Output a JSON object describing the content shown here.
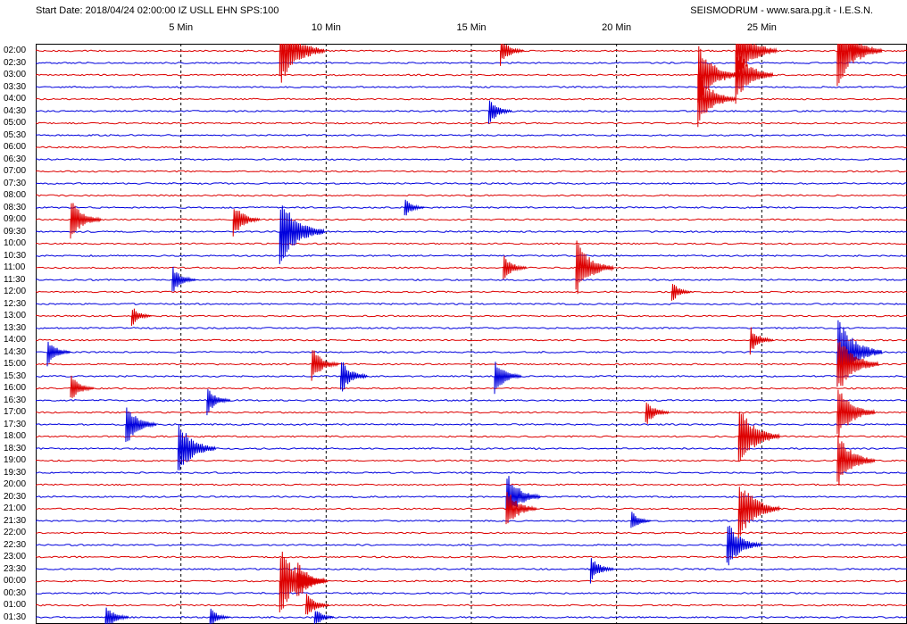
{
  "header": {
    "start_info": "Start Date: 2018/04/24 02:00:00 IZ USLL EHN SPS:100",
    "source_info": "SEISMODRUM - www.sara.pg.it - I.E.S.N."
  },
  "colors": {
    "even_trace": "#dd0000",
    "odd_trace": "#0000dd",
    "grid": "#000000",
    "background": "#ffffff"
  },
  "chart_data": {
    "type": "line",
    "title": "",
    "x_axis": {
      "unit": "minutes",
      "range": [
        0,
        30
      ],
      "tick_values": [
        5,
        10,
        15,
        20,
        25
      ],
      "tick_labels": [
        "5 Min",
        "10 Min",
        "15 Min",
        "20 Min",
        "25 Min"
      ],
      "grid": "dashed vertical lines"
    },
    "y_axis": {
      "unit": "time of day",
      "row_interval_minutes": 30,
      "row_labels": [
        "02:00",
        "02:30",
        "03:00",
        "03:30",
        "04:00",
        "04:30",
        "05:00",
        "05:30",
        "06:00",
        "06:30",
        "07:00",
        "07:30",
        "08:00",
        "08:30",
        "09:00",
        "09:30",
        "10:00",
        "10:30",
        "11:00",
        "11:30",
        "12:00",
        "12:30",
        "13:00",
        "13:30",
        "14:00",
        "14:30",
        "15:00",
        "15:30",
        "16:00",
        "16:30",
        "17:00",
        "17:30",
        "18:00",
        "18:30",
        "19:00",
        "19:30",
        "20:00",
        "20:30",
        "21:00",
        "21:30",
        "22:00",
        "22:30",
        "23:00",
        "23:30",
        "00:00",
        "00:30",
        "01:00",
        "01:30"
      ]
    },
    "events": [
      {
        "row": 0,
        "minute": 8.4,
        "amplitude": 1.0
      },
      {
        "row": 15,
        "minute": 8.4,
        "amplitude": 1.0
      },
      {
        "row": 44,
        "minute": 8.4,
        "amplitude": 1.0
      },
      {
        "row": 44,
        "minute": 9.0,
        "amplitude": 0.6
      },
      {
        "row": 46,
        "minute": 9.3,
        "amplitude": 0.4
      },
      {
        "row": 47,
        "minute": 9.6,
        "amplitude": 0.3
      },
      {
        "row": 25,
        "minute": 27.6,
        "amplitude": 1.0
      },
      {
        "row": 26,
        "minute": 27.6,
        "amplitude": 0.9
      },
      {
        "row": 30,
        "minute": 27.6,
        "amplitude": 0.8
      },
      {
        "row": 34,
        "minute": 27.6,
        "amplitude": 0.8
      },
      {
        "row": 0,
        "minute": 27.6,
        "amplitude": 1.0
      },
      {
        "row": 2,
        "minute": 22.8,
        "amplitude": 0.9
      },
      {
        "row": 4,
        "minute": 22.8,
        "amplitude": 0.8
      },
      {
        "row": 0,
        "minute": 24.1,
        "amplitude": 0.9
      },
      {
        "row": 2,
        "minute": 24.1,
        "amplitude": 0.8
      },
      {
        "row": 32,
        "minute": 24.2,
        "amplitude": 0.9
      },
      {
        "row": 38,
        "minute": 24.2,
        "amplitude": 0.9
      },
      {
        "row": 41,
        "minute": 23.8,
        "amplitude": 0.7
      },
      {
        "row": 0,
        "minute": 16.0,
        "amplitude": 0.4
      },
      {
        "row": 0,
        "minute": 28.1,
        "amplitude": 0.3
      },
      {
        "row": 5,
        "minute": 15.6,
        "amplitude": 0.4
      },
      {
        "row": 14,
        "minute": 1.2,
        "amplitude": 0.6
      },
      {
        "row": 14,
        "minute": 6.8,
        "amplitude": 0.5
      },
      {
        "row": 13,
        "minute": 12.7,
        "amplitude": 0.3
      },
      {
        "row": 18,
        "minute": 18.6,
        "amplitude": 0.8
      },
      {
        "row": 18,
        "minute": 16.1,
        "amplitude": 0.4
      },
      {
        "row": 19,
        "minute": 4.7,
        "amplitude": 0.4
      },
      {
        "row": 20,
        "minute": 21.9,
        "amplitude": 0.3
      },
      {
        "row": 22,
        "minute": 3.3,
        "amplitude": 0.3
      },
      {
        "row": 24,
        "minute": 24.6,
        "amplitude": 0.4
      },
      {
        "row": 25,
        "minute": 0.4,
        "amplitude": 0.4
      },
      {
        "row": 26,
        "minute": 9.5,
        "amplitude": 0.5
      },
      {
        "row": 27,
        "minute": 10.5,
        "amplitude": 0.5
      },
      {
        "row": 27,
        "minute": 15.8,
        "amplitude": 0.5
      },
      {
        "row": 28,
        "minute": 1.2,
        "amplitude": 0.4
      },
      {
        "row": 29,
        "minute": 5.9,
        "amplitude": 0.4
      },
      {
        "row": 31,
        "minute": 3.1,
        "amplitude": 0.6
      },
      {
        "row": 33,
        "minute": 4.9,
        "amplitude": 0.8
      },
      {
        "row": 37,
        "minute": 16.2,
        "amplitude": 0.7
      },
      {
        "row": 38,
        "minute": 16.2,
        "amplitude": 0.6
      },
      {
        "row": 30,
        "minute": 21.0,
        "amplitude": 0.4
      },
      {
        "row": 39,
        "minute": 20.5,
        "amplitude": 0.3
      },
      {
        "row": 43,
        "minute": 19.1,
        "amplitude": 0.4
      },
      {
        "row": 47,
        "minute": 2.4,
        "amplitude": 0.4
      },
      {
        "row": 47,
        "minute": 6.0,
        "amplitude": 0.3
      }
    ]
  }
}
